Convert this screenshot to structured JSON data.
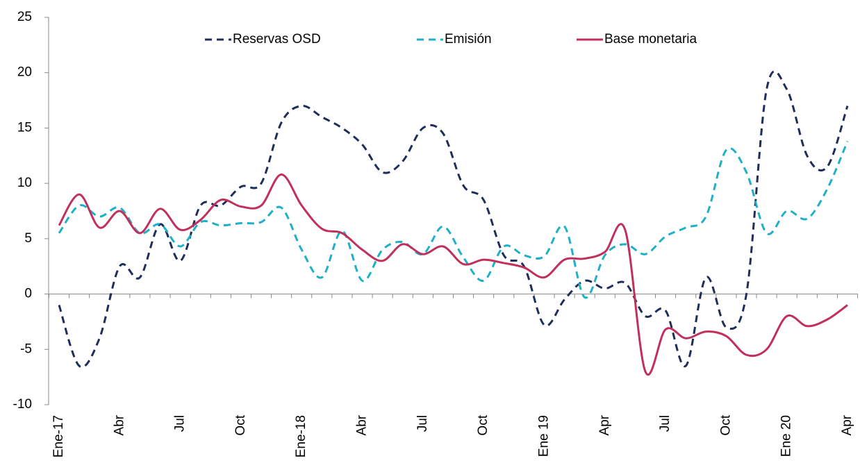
{
  "chart_data": {
    "type": "line",
    "categories": [
      "Ene-17",
      null,
      null,
      "Abr",
      null,
      null,
      "Jul",
      null,
      null,
      "Oct",
      null,
      null,
      "Ene-18",
      null,
      null,
      "Abr",
      null,
      null,
      "Jul",
      null,
      null,
      "Oct",
      null,
      null,
      "Ene 19",
      null,
      null,
      "Apr",
      null,
      null,
      "Jul",
      null,
      null,
      "Oct",
      null,
      null,
      "Ene 20",
      null,
      null,
      "Apr"
    ],
    "series": [
      {
        "name": "Reservas OSD",
        "color": "#1f2d5c",
        "dash": true,
        "values": [
          -1,
          -6.5,
          -4,
          2.5,
          1.5,
          6.3,
          3,
          8,
          8,
          9.7,
          10,
          15.5,
          17,
          16,
          15,
          13.5,
          11,
          12,
          15,
          14.5,
          9.8,
          8.5,
          3.5,
          2.5,
          -2.8,
          -0.5,
          1.2,
          0.5,
          1,
          -2,
          -1.5,
          -6.5,
          1.5,
          -3,
          0,
          18.5,
          18.5,
          12.5,
          11.5,
          17
        ]
      },
      {
        "name": "Emisión",
        "color": "#1fb0c8",
        "dash": true,
        "values": [
          5.5,
          8,
          7,
          7.8,
          5.5,
          6.3,
          4.3,
          6.5,
          6.2,
          6.4,
          6.5,
          7.8,
          4,
          1.5,
          5.7,
          1.2,
          4,
          4.7,
          3.6,
          6.1,
          3.3,
          1.2,
          4.3,
          3.5,
          3.4,
          6.1,
          -0.3,
          3.5,
          4.5,
          3.6,
          5.2,
          6,
          7,
          13,
          11,
          5.5,
          7.5,
          6.8,
          9.5,
          13.8
        ]
      },
      {
        "name": "Base monetaria",
        "color": "#c0305a",
        "dash": false,
        "values": [
          6.2,
          9,
          6,
          7.5,
          5.5,
          7.7,
          5.8,
          6.7,
          8.5,
          7.9,
          8,
          10.8,
          8,
          5.9,
          5.5,
          4,
          3,
          4.5,
          3.6,
          4.3,
          2.7,
          3.1,
          2.8,
          2.4,
          1.5,
          3.1,
          3.2,
          3.8,
          5.8,
          -7,
          -3.2,
          -4,
          -3.4,
          -3.8,
          -5.5,
          -5,
          -2,
          -2.9,
          -2.3,
          -1
        ]
      }
    ],
    "ylim": [
      -10,
      25
    ],
    "yticks": [
      -10,
      -5,
      0,
      5,
      10,
      15,
      20,
      25
    ],
    "grid": false,
    "legend": "top"
  }
}
